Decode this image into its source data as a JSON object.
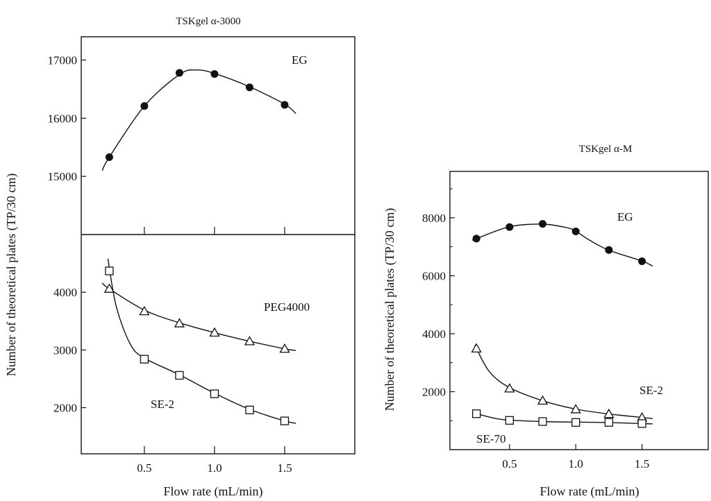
{
  "chart_data": [
    {
      "type": "scatter",
      "title": "TSKgel α-3000",
      "xlabel": "Flow rate (mL/min)",
      "ylabel": "Number of theoretical plates (TP/30 cm)",
      "x_ticks": [
        0.5,
        1.0,
        1.5
      ],
      "x_tick_labels": [
        "0.5",
        "1.0",
        "1.5"
      ],
      "xlim": [
        0.05,
        2.0
      ],
      "grid": false,
      "upper_panel": {
        "ylim": [
          14000,
          17400
        ],
        "y_ticks": [
          15000,
          16000,
          17000
        ],
        "y_tick_labels": [
          "15000",
          "16000",
          "17000"
        ],
        "series": [
          {
            "name": "EG",
            "marker": "filled-circle",
            "x": [
              0.25,
              0.5,
              0.75,
              1.0,
              1.25,
              1.5
            ],
            "y": [
              15330,
              16210,
              16780,
              16760,
              16530,
              16230
            ],
            "curve": [
              [
                0.2,
                15100
              ],
              [
                0.25,
                15330
              ],
              [
                0.5,
                16210
              ],
              [
                0.75,
                16750
              ],
              [
                0.87,
                16830
              ],
              [
                1.0,
                16770
              ],
              [
                1.25,
                16540
              ],
              [
                1.5,
                16240
              ],
              [
                1.58,
                16080
              ]
            ]
          }
        ]
      },
      "lower_panel": {
        "ylim": [
          1200,
          5000
        ],
        "y_ticks": [
          2000,
          3000,
          4000
        ],
        "y_tick_labels": [
          "2000",
          "3000",
          "4000"
        ],
        "series": [
          {
            "name": "PEG4000",
            "marker": "open-triangle",
            "x": [
              0.25,
              0.5,
              0.75,
              1.0,
              1.25,
              1.5
            ],
            "y": [
              4060,
              3670,
              3460,
              3300,
              3150,
              3020
            ],
            "curve": [
              [
                0.2,
                4160
              ],
              [
                0.25,
                4060
              ],
              [
                0.5,
                3690
              ],
              [
                0.75,
                3470
              ],
              [
                1.0,
                3300
              ],
              [
                1.25,
                3150
              ],
              [
                1.5,
                3020
              ],
              [
                1.58,
                2990
              ]
            ]
          },
          {
            "name": "SE-2",
            "marker": "open-square",
            "x": [
              0.25,
              0.5,
              0.75,
              1.0,
              1.25,
              1.5
            ],
            "y": [
              4370,
              2840,
              2560,
              2240,
              1960,
              1770
            ],
            "curve": [
              [
                0.24,
                4580
              ],
              [
                0.3,
                3750
              ],
              [
                0.4,
                3100
              ],
              [
                0.5,
                2860
              ],
              [
                0.75,
                2570
              ],
              [
                1.0,
                2250
              ],
              [
                1.25,
                1970
              ],
              [
                1.5,
                1770
              ],
              [
                1.58,
                1730
              ]
            ]
          }
        ]
      }
    },
    {
      "type": "scatter",
      "title": "TSKgel α-M",
      "xlabel": "Flow rate (mL/min)",
      "ylabel": "Number of theoretical plates (TP/30 cm)",
      "x_ticks": [
        0.5,
        1.0,
        1.5
      ],
      "x_tick_labels": [
        "0.5",
        "1.0",
        "1.5"
      ],
      "xlim": [
        0.05,
        2.0
      ],
      "ylim": [
        0,
        9600
      ],
      "y_ticks": [
        2000,
        4000,
        6000,
        8000
      ],
      "y_tick_labels": [
        "2000",
        "4000",
        "6000",
        "8000"
      ],
      "grid": false,
      "series": [
        {
          "name": "EG",
          "marker": "filled-circle",
          "x": [
            0.25,
            0.5,
            0.75,
            1.0,
            1.25,
            1.5
          ],
          "y": [
            7280,
            7680,
            7790,
            7530,
            6890,
            6500
          ],
          "curve": [
            [
              0.22,
              7230
            ],
            [
              0.25,
              7280
            ],
            [
              0.5,
              7690
            ],
            [
              0.75,
              7780
            ],
            [
              0.93,
              7660
            ],
            [
              1.0,
              7540
            ],
            [
              1.1,
              7240
            ],
            [
              1.25,
              6880
            ],
            [
              1.5,
              6510
            ],
            [
              1.58,
              6330
            ]
          ]
        },
        {
          "name": "SE-2",
          "marker": "open-triangle",
          "x": [
            0.25,
            0.5,
            0.75,
            1.0,
            1.25,
            1.5
          ],
          "y": [
            3490,
            2110,
            1690,
            1390,
            1230,
            1110
          ],
          "curve": [
            [
              0.24,
              3620
            ],
            [
              0.25,
              3490
            ],
            [
              0.35,
              2680
            ],
            [
              0.5,
              2140
            ],
            [
              0.75,
              1690
            ],
            [
              1.0,
              1400
            ],
            [
              1.25,
              1230
            ],
            [
              1.5,
              1110
            ],
            [
              1.58,
              1070
            ]
          ]
        },
        {
          "name": "SE-70",
          "marker": "open-square",
          "x": [
            0.25,
            0.5,
            0.75,
            1.0,
            1.25,
            1.5
          ],
          "y": [
            1240,
            1010,
            970,
            940,
            940,
            900
          ],
          "curve": [
            [
              0.22,
              1280
            ],
            [
              0.25,
              1240
            ],
            [
              0.4,
              1070
            ],
            [
              0.5,
              1020
            ],
            [
              0.75,
              970
            ],
            [
              1.0,
              950
            ],
            [
              1.25,
              935
            ],
            [
              1.5,
              900
            ],
            [
              1.58,
              890
            ]
          ]
        }
      ]
    }
  ]
}
